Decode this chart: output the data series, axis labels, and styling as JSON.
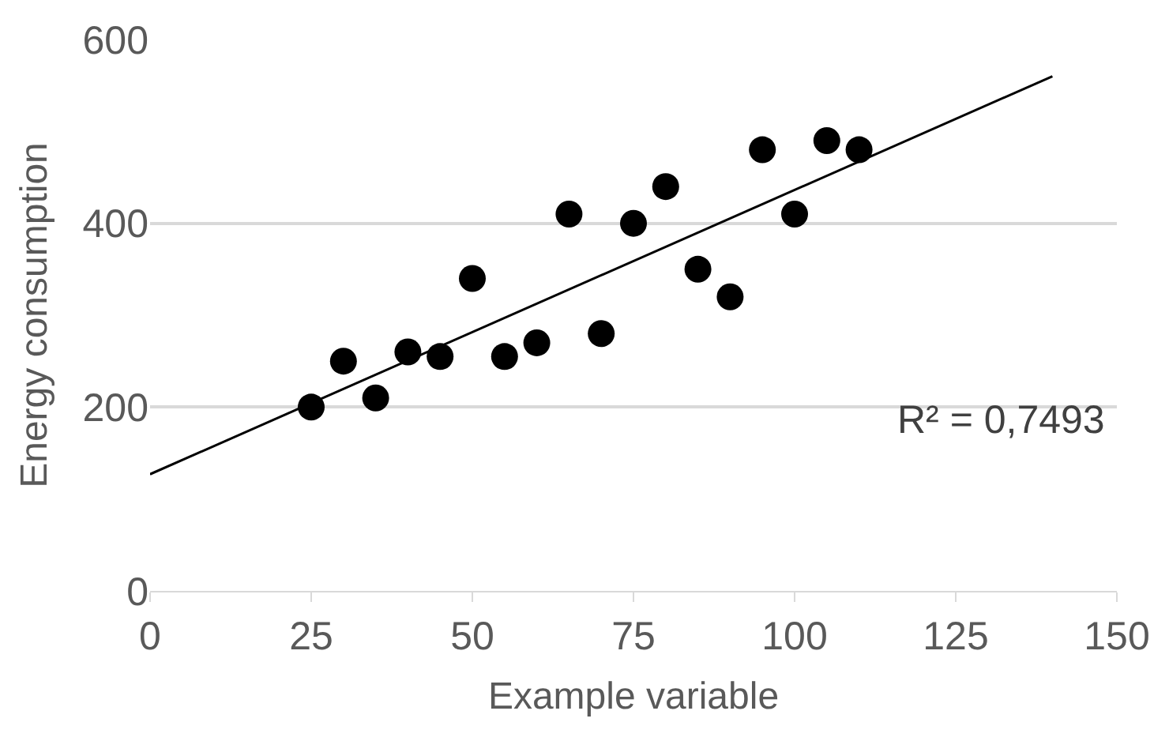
{
  "chart_data": {
    "type": "scatter",
    "xlabel": "Example variable",
    "ylabel": "Energy consumption",
    "x": [
      25,
      30,
      35,
      40,
      45,
      50,
      55,
      60,
      65,
      70,
      75,
      80,
      85,
      90,
      95,
      100,
      105,
      110
    ],
    "series": [
      {
        "color": "#000000",
        "values": [
          200,
          250,
          210,
          260,
          255,
          340,
          255,
          270,
          410,
          280,
          400,
          440,
          350,
          320,
          480,
          410,
          490,
          480
        ]
      },
      {
        "type": "line",
        "marker": "none",
        "color": "#000000",
        "x": [
          0,
          140
        ],
        "values": [
          127,
          560
        ]
      }
    ],
    "annotations": [
      "R² = 0,7493"
    ],
    "xlim": [
      0,
      150
    ],
    "xticks": [
      0,
      25,
      50,
      75,
      100,
      125,
      150
    ],
    "ylim": [
      0,
      600
    ],
    "yticks": [
      0,
      200,
      400,
      600
    ],
    "grid": "y",
    "marker": "circle",
    "legend": false
  }
}
